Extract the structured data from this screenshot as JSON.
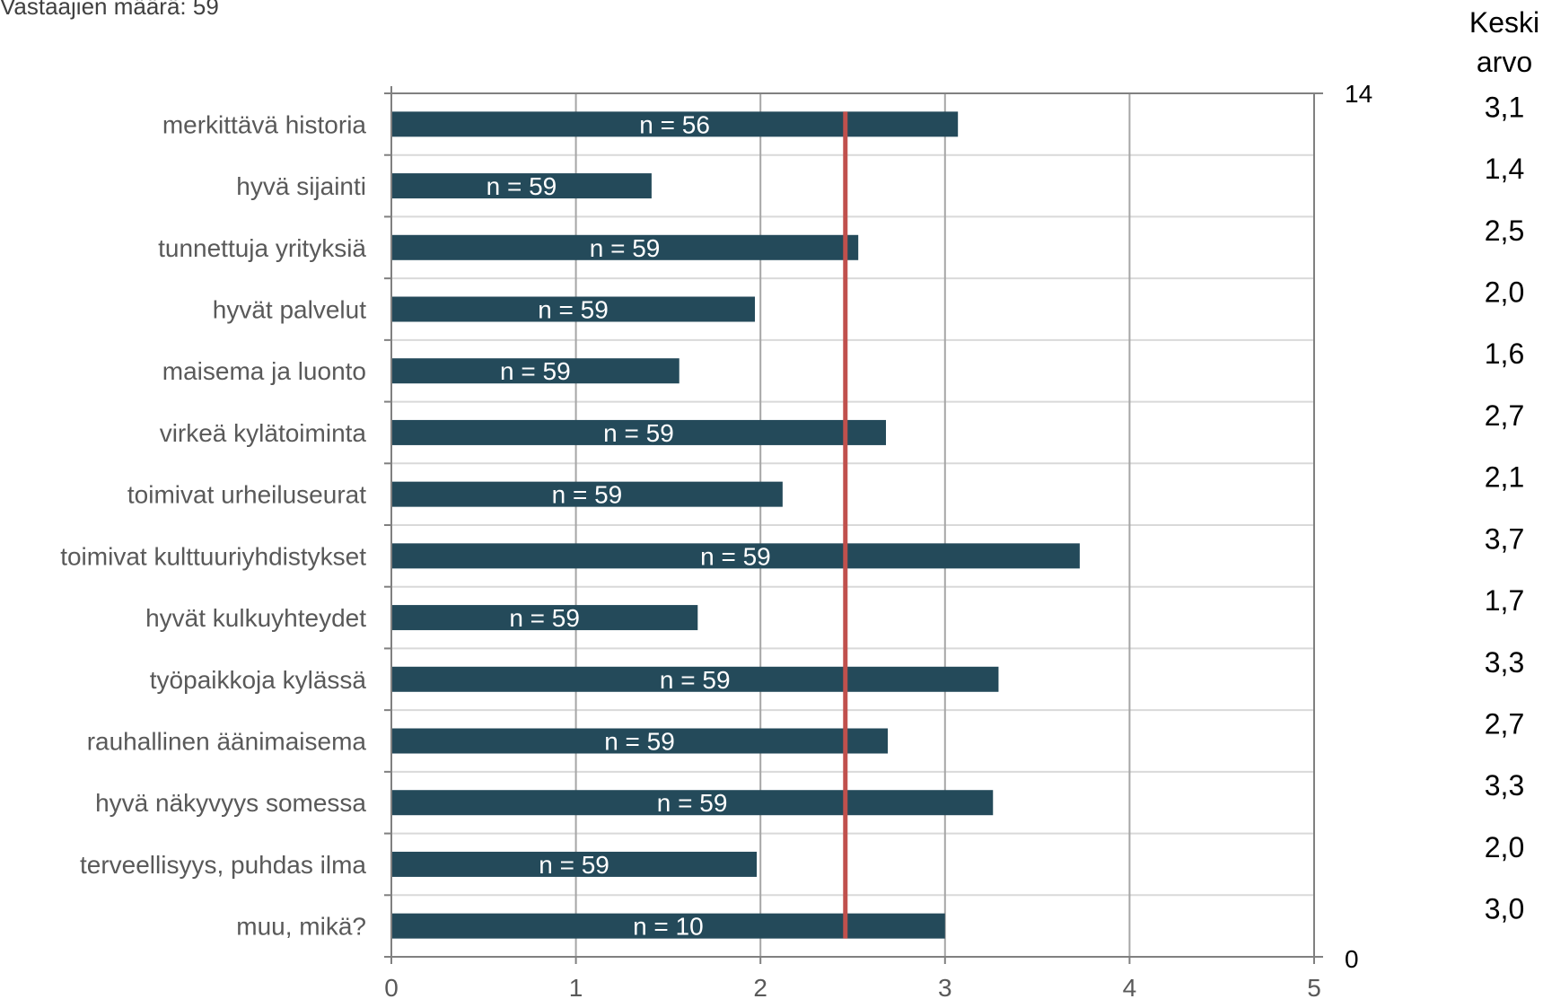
{
  "header": {
    "respondents_text": "Vastaajien määrä: 59"
  },
  "chart_data": {
    "type": "bar",
    "orientation": "horizontal",
    "categories": [
      "merkittävä historia",
      "hyvä sijainti",
      "tunnettuja yrityksiä",
      "hyvät palvelut",
      "maisema ja luonto",
      "virkeä kylätoiminta",
      "toimivat urheiluseurat",
      "toimivat kulttuuriyhdistykset",
      "hyvät kulkuyhteydet",
      "työpaikkoja kylässä",
      "rauhallinen äänimaisema",
      "hyvä näkyvyys somessa",
      "terveellisyys, puhdas ilma",
      "muu, mikä?"
    ],
    "values": [
      3.07,
      1.41,
      2.53,
      1.97,
      1.56,
      2.68,
      2.12,
      3.73,
      1.66,
      3.29,
      2.69,
      3.26,
      1.98,
      3.0
    ],
    "bar_labels": [
      "n = 56",
      "n = 59",
      "n = 59",
      "n = 59",
      "n = 59",
      "n = 59",
      "n = 59",
      "n = 59",
      "n = 59",
      "n = 59",
      "n = 59",
      "n = 59",
      "n = 59",
      "n = 10"
    ],
    "xlim": [
      0,
      5
    ],
    "x_ticks": [
      "0",
      "1",
      "2",
      "3",
      "4",
      "5"
    ],
    "secondary_axis": {
      "range": [
        0,
        14
      ],
      "labels": [
        "14",
        "0"
      ]
    },
    "reference_line": {
      "value": 2.46,
      "color": "#c0504d"
    },
    "mean_column": {
      "header_line1": "Keski",
      "header_line2": "arvo",
      "values": [
        "3,1",
        "1,4",
        "2,5",
        "2,0",
        "1,6",
        "2,7",
        "2,1",
        "3,7",
        "1,7",
        "3,3",
        "2,7",
        "3,3",
        "2,0",
        "3,0"
      ]
    },
    "grid": true,
    "colors": {
      "bar": "#244a5a",
      "grid": "#d9d9d9",
      "axis": "#808080",
      "vgrid": "#a6a6a6"
    }
  }
}
